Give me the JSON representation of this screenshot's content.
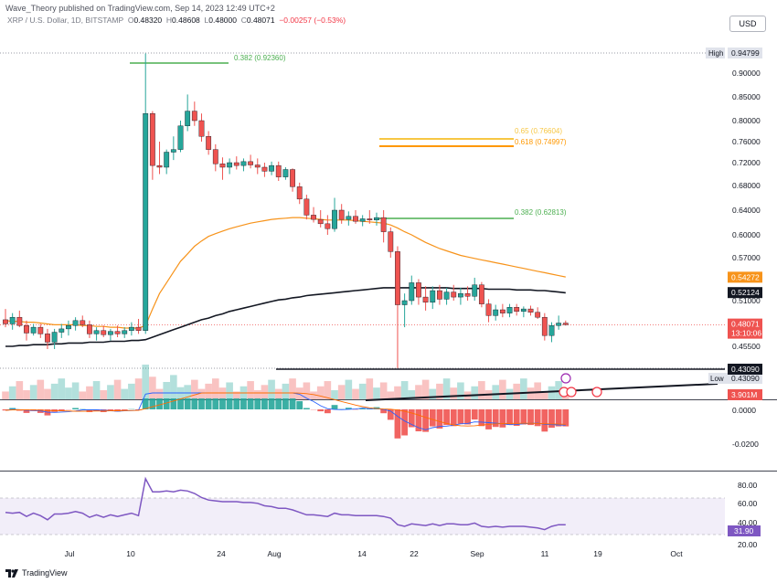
{
  "header": {
    "published": "Wave_Theory published on TradingView.com, Sep 14, 2023 12:49 UTC+2",
    "symbol": "XRP / U.S. Dollar, 1D, BITSTAMP",
    "open_label": "O",
    "open": "0.48320",
    "high_label": "H",
    "high": "0.48608",
    "low_label": "L",
    "low": "0.48000",
    "close_label": "C",
    "close": "0.48071",
    "change": "−0.00257 (−0.53%)",
    "currency": "USD"
  },
  "price_axis": {
    "ticks": [
      "0.90000",
      "0.85000",
      "0.80000",
      "0.76000",
      "0.72000",
      "0.68000",
      "0.64000",
      "0.60000",
      "0.57000",
      "0.51000",
      "0.45500"
    ],
    "high_label": "High",
    "high_value": "0.94799",
    "low_label": "Low",
    "low_value": "0.43090",
    "ma50_value": "0.54272",
    "ma200_value": "0.52124",
    "last_price": "0.48071",
    "countdown": "13:10:06",
    "support_value": "0.43090",
    "volume_value": "3.901M"
  },
  "fib_labels": {
    "top": "0.382 (0.92360)",
    "f65": "0.65 (0.76604)",
    "f618": "0.618 (0.74997)",
    "f382": "0.382 (0.62813)"
  },
  "macd_axis": {
    "ticks": [
      "0.0000",
      "-0.0200"
    ]
  },
  "rsi_axis": {
    "ticks": [
      "80.00",
      "60.00",
      "40.00",
      "20.00"
    ],
    "current": "31.90"
  },
  "time_axis": {
    "labels": [
      "Jul",
      "10",
      "24",
      "Aug",
      "14",
      "22",
      "Sep",
      "11",
      "19",
      "Oct"
    ]
  },
  "colors": {
    "up": "#26a69a",
    "down": "#ef5350",
    "ma50": "#f7931a",
    "ma200": "#131722",
    "fib_green": "#4caf50",
    "fib_gold": "#f7c744",
    "fib_orange": "#ff9800",
    "rsi": "#7e57c2"
  },
  "footer": {
    "brand": "TradingView"
  },
  "chart_data": {
    "type": "candlestick",
    "title": "XRP / U.S. Dollar, 1D, BITSTAMP",
    "candles": [
      {
        "o": 0.487,
        "h": 0.5,
        "l": 0.478,
        "c": 0.482
      },
      {
        "o": 0.482,
        "h": 0.495,
        "l": 0.475,
        "c": 0.49
      },
      {
        "o": 0.49,
        "h": 0.498,
        "l": 0.478,
        "c": 0.48
      },
      {
        "o": 0.48,
        "h": 0.486,
        "l": 0.462,
        "c": 0.471
      },
      {
        "o": 0.471,
        "h": 0.482,
        "l": 0.468,
        "c": 0.478
      },
      {
        "o": 0.478,
        "h": 0.482,
        "l": 0.465,
        "c": 0.47
      },
      {
        "o": 0.47,
        "h": 0.476,
        "l": 0.452,
        "c": 0.46
      },
      {
        "o": 0.46,
        "h": 0.476,
        "l": 0.452,
        "c": 0.472
      },
      {
        "o": 0.472,
        "h": 0.482,
        "l": 0.465,
        "c": 0.476
      },
      {
        "o": 0.476,
        "h": 0.486,
        "l": 0.468,
        "c": 0.48
      },
      {
        "o": 0.48,
        "h": 0.49,
        "l": 0.474,
        "c": 0.486
      },
      {
        "o": 0.486,
        "h": 0.492,
        "l": 0.478,
        "c": 0.481
      },
      {
        "o": 0.481,
        "h": 0.486,
        "l": 0.465,
        "c": 0.47
      },
      {
        "o": 0.47,
        "h": 0.478,
        "l": 0.462,
        "c": 0.474
      },
      {
        "o": 0.474,
        "h": 0.48,
        "l": 0.466,
        "c": 0.469
      },
      {
        "o": 0.469,
        "h": 0.476,
        "l": 0.462,
        "c": 0.473
      },
      {
        "o": 0.473,
        "h": 0.48,
        "l": 0.466,
        "c": 0.47
      },
      {
        "o": 0.47,
        "h": 0.478,
        "l": 0.465,
        "c": 0.474
      },
      {
        "o": 0.474,
        "h": 0.484,
        "l": 0.468,
        "c": 0.478
      },
      {
        "o": 0.478,
        "h": 0.488,
        "l": 0.47,
        "c": 0.474
      },
      {
        "o": 0.474,
        "h": 0.947,
        "l": 0.47,
        "c": 0.815
      },
      {
        "o": 0.815,
        "h": 0.82,
        "l": 0.69,
        "c": 0.715
      },
      {
        "o": 0.715,
        "h": 0.76,
        "l": 0.7,
        "c": 0.712
      },
      {
        "o": 0.712,
        "h": 0.745,
        "l": 0.7,
        "c": 0.74
      },
      {
        "o": 0.74,
        "h": 0.77,
        "l": 0.725,
        "c": 0.745
      },
      {
        "o": 0.745,
        "h": 0.8,
        "l": 0.74,
        "c": 0.79
      },
      {
        "o": 0.79,
        "h": 0.855,
        "l": 0.78,
        "c": 0.82
      },
      {
        "o": 0.82,
        "h": 0.84,
        "l": 0.79,
        "c": 0.8
      },
      {
        "o": 0.8,
        "h": 0.815,
        "l": 0.76,
        "c": 0.77
      },
      {
        "o": 0.77,
        "h": 0.78,
        "l": 0.735,
        "c": 0.745
      },
      {
        "o": 0.745,
        "h": 0.755,
        "l": 0.705,
        "c": 0.718
      },
      {
        "o": 0.718,
        "h": 0.73,
        "l": 0.69,
        "c": 0.712
      },
      {
        "o": 0.712,
        "h": 0.728,
        "l": 0.7,
        "c": 0.72
      },
      {
        "o": 0.72,
        "h": 0.732,
        "l": 0.708,
        "c": 0.715
      },
      {
        "o": 0.715,
        "h": 0.728,
        "l": 0.705,
        "c": 0.722
      },
      {
        "o": 0.722,
        "h": 0.735,
        "l": 0.71,
        "c": 0.716
      },
      {
        "o": 0.716,
        "h": 0.728,
        "l": 0.7,
        "c": 0.712
      },
      {
        "o": 0.712,
        "h": 0.72,
        "l": 0.695,
        "c": 0.705
      },
      {
        "o": 0.705,
        "h": 0.722,
        "l": 0.698,
        "c": 0.715
      },
      {
        "o": 0.715,
        "h": 0.722,
        "l": 0.688,
        "c": 0.695
      },
      {
        "o": 0.695,
        "h": 0.712,
        "l": 0.69,
        "c": 0.708
      },
      {
        "o": 0.708,
        "h": 0.71,
        "l": 0.67,
        "c": 0.678
      },
      {
        "o": 0.678,
        "h": 0.685,
        "l": 0.65,
        "c": 0.658
      },
      {
        "o": 0.658,
        "h": 0.665,
        "l": 0.625,
        "c": 0.632
      },
      {
        "o": 0.632,
        "h": 0.645,
        "l": 0.62,
        "c": 0.625
      },
      {
        "o": 0.625,
        "h": 0.64,
        "l": 0.612,
        "c": 0.618
      },
      {
        "o": 0.618,
        "h": 0.632,
        "l": 0.6,
        "c": 0.61
      },
      {
        "o": 0.61,
        "h": 0.66,
        "l": 0.605,
        "c": 0.64
      },
      {
        "o": 0.64,
        "h": 0.65,
        "l": 0.618,
        "c": 0.625
      },
      {
        "o": 0.625,
        "h": 0.638,
        "l": 0.615,
        "c": 0.63
      },
      {
        "o": 0.63,
        "h": 0.64,
        "l": 0.618,
        "c": 0.622
      },
      {
        "o": 0.622,
        "h": 0.632,
        "l": 0.614,
        "c": 0.626
      },
      {
        "o": 0.626,
        "h": 0.64,
        "l": 0.618,
        "c": 0.624
      },
      {
        "o": 0.624,
        "h": 0.636,
        "l": 0.615,
        "c": 0.628
      },
      {
        "o": 0.628,
        "h": 0.64,
        "l": 0.59,
        "c": 0.605
      },
      {
        "o": 0.605,
        "h": 0.612,
        "l": 0.57,
        "c": 0.578
      },
      {
        "o": 0.578,
        "h": 0.585,
        "l": 0.431,
        "c": 0.505
      },
      {
        "o": 0.505,
        "h": 0.52,
        "l": 0.478,
        "c": 0.51
      },
      {
        "o": 0.51,
        "h": 0.545,
        "l": 0.505,
        "c": 0.535
      },
      {
        "o": 0.535,
        "h": 0.54,
        "l": 0.505,
        "c": 0.515
      },
      {
        "o": 0.515,
        "h": 0.53,
        "l": 0.498,
        "c": 0.508
      },
      {
        "o": 0.508,
        "h": 0.53,
        "l": 0.5,
        "c": 0.524
      },
      {
        "o": 0.524,
        "h": 0.532,
        "l": 0.505,
        "c": 0.512
      },
      {
        "o": 0.512,
        "h": 0.528,
        "l": 0.505,
        "c": 0.522
      },
      {
        "o": 0.522,
        "h": 0.532,
        "l": 0.51,
        "c": 0.515
      },
      {
        "o": 0.515,
        "h": 0.528,
        "l": 0.505,
        "c": 0.52
      },
      {
        "o": 0.52,
        "h": 0.53,
        "l": 0.51,
        "c": 0.516
      },
      {
        "o": 0.516,
        "h": 0.542,
        "l": 0.51,
        "c": 0.532
      },
      {
        "o": 0.532,
        "h": 0.536,
        "l": 0.502,
        "c": 0.506
      },
      {
        "o": 0.506,
        "h": 0.512,
        "l": 0.484,
        "c": 0.492
      },
      {
        "o": 0.492,
        "h": 0.505,
        "l": 0.486,
        "c": 0.499
      },
      {
        "o": 0.499,
        "h": 0.506,
        "l": 0.49,
        "c": 0.495
      },
      {
        "o": 0.495,
        "h": 0.506,
        "l": 0.49,
        "c": 0.502
      },
      {
        "o": 0.502,
        "h": 0.506,
        "l": 0.492,
        "c": 0.497
      },
      {
        "o": 0.497,
        "h": 0.503,
        "l": 0.49,
        "c": 0.5
      },
      {
        "o": 0.5,
        "h": 0.504,
        "l": 0.492,
        "c": 0.496
      },
      {
        "o": 0.496,
        "h": 0.502,
        "l": 0.488,
        "c": 0.49
      },
      {
        "o": 0.49,
        "h": 0.495,
        "l": 0.462,
        "c": 0.468
      },
      {
        "o": 0.468,
        "h": 0.484,
        "l": 0.46,
        "c": 0.48
      },
      {
        "o": 0.48,
        "h": 0.492,
        "l": 0.475,
        "c": 0.483
      },
      {
        "o": 0.483,
        "h": 0.486,
        "l": 0.48,
        "c": 0.481
      }
    ],
    "ma50": [
      0.486,
      0.485,
      0.485,
      0.484,
      0.484,
      0.483,
      0.482,
      0.481,
      0.481,
      0.481,
      0.481,
      0.48,
      0.48,
      0.479,
      0.479,
      0.478,
      0.478,
      0.477,
      0.477,
      0.477,
      0.48,
      0.5,
      0.52,
      0.535,
      0.55,
      0.565,
      0.575,
      0.585,
      0.592,
      0.598,
      0.602,
      0.606,
      0.61,
      0.613,
      0.616,
      0.619,
      0.621,
      0.623,
      0.625,
      0.626,
      0.627,
      0.628,
      0.628,
      0.627,
      0.626,
      0.625,
      0.624,
      0.624,
      0.624,
      0.624,
      0.623,
      0.622,
      0.621,
      0.62,
      0.619,
      0.616,
      0.611,
      0.605,
      0.6,
      0.595,
      0.59,
      0.586,
      0.582,
      0.579,
      0.576,
      0.573,
      0.571,
      0.569,
      0.567,
      0.565,
      0.563,
      0.561,
      0.559,
      0.557,
      0.555,
      0.553,
      0.551,
      0.549,
      0.547,
      0.545,
      0.543
    ],
    "ma200": [
      0.455,
      0.455,
      0.456,
      0.456,
      0.457,
      0.457,
      0.457,
      0.458,
      0.458,
      0.459,
      0.459,
      0.459,
      0.46,
      0.46,
      0.46,
      0.461,
      0.461,
      0.461,
      0.462,
      0.462,
      0.463,
      0.466,
      0.469,
      0.472,
      0.475,
      0.478,
      0.481,
      0.484,
      0.487,
      0.489,
      0.492,
      0.494,
      0.497,
      0.499,
      0.501,
      0.503,
      0.505,
      0.507,
      0.509,
      0.511,
      0.512,
      0.514,
      0.515,
      0.517,
      0.518,
      0.519,
      0.52,
      0.521,
      0.522,
      0.523,
      0.524,
      0.525,
      0.526,
      0.527,
      0.528,
      0.528,
      0.528,
      0.528,
      0.528,
      0.528,
      0.528,
      0.528,
      0.528,
      0.528,
      0.527,
      0.527,
      0.527,
      0.527,
      0.527,
      0.526,
      0.526,
      0.526,
      0.526,
      0.525,
      0.525,
      0.525,
      0.524,
      0.524,
      0.523,
      0.522,
      0.521
    ],
    "rsi": [
      47,
      46,
      47,
      42,
      46,
      43,
      38,
      45,
      45,
      46,
      48,
      46,
      41,
      44,
      41,
      44,
      42,
      44,
      46,
      43,
      88,
      72,
      72,
      73,
      72,
      74,
      73,
      70,
      65,
      62,
      61,
      60,
      60,
      60,
      59,
      59,
      58,
      55,
      54,
      52,
      52,
      50,
      47,
      44,
      44,
      43,
      42,
      46,
      44,
      44,
      43,
      43,
      43,
      43,
      42,
      40,
      32,
      30,
      33,
      32,
      31,
      33,
      31,
      33,
      33,
      32,
      32,
      34,
      30,
      29,
      30,
      29,
      30,
      30,
      30,
      29,
      28,
      26,
      30,
      32,
      31.9
    ]
  }
}
